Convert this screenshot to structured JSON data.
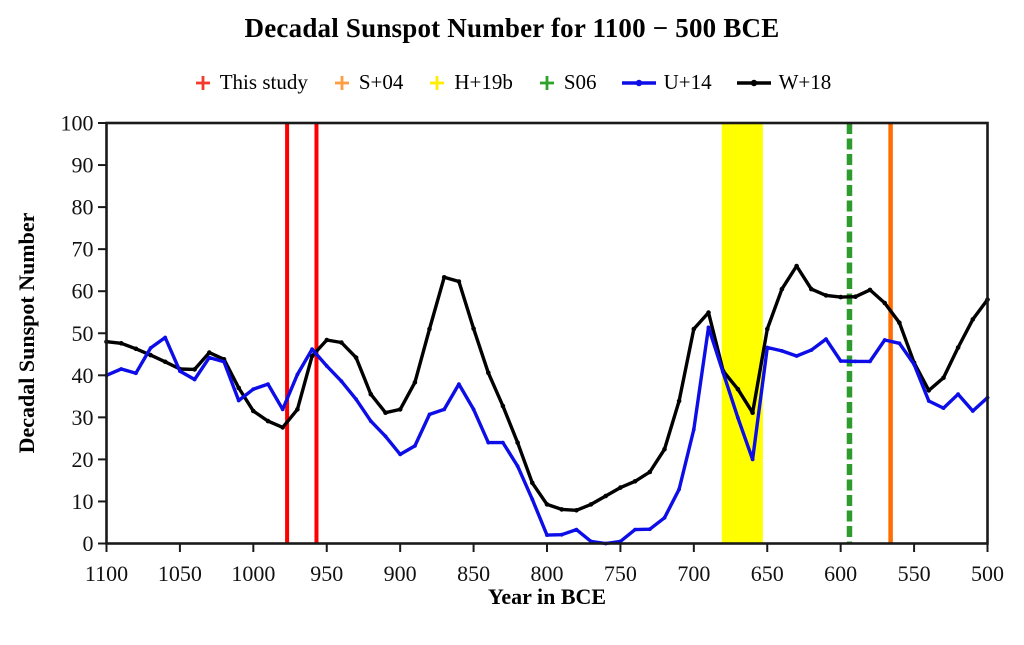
{
  "title": "Decadal Sunspot Number for 1100 − 500 BCE",
  "axes": {
    "xlabel": "Year in BCE",
    "ylabel": "Decadal Sunspot Number"
  },
  "legend": {
    "items": [
      {
        "label": "This study",
        "color": "#F23B2E",
        "symbol": "plus"
      },
      {
        "label": "S+04",
        "color": "#FF9E40",
        "symbol": "plus"
      },
      {
        "label": "H+19b",
        "color": "#FFEE00",
        "symbol": "plus"
      },
      {
        "label": "S06",
        "color": "#2DA32D",
        "symbol": "plus"
      },
      {
        "label": "U+14",
        "color": "#0D0DE8",
        "symbol": "line"
      },
      {
        "label": "W+18",
        "color": "#000000",
        "symbol": "line"
      }
    ]
  },
  "chart_data": {
    "type": "line",
    "title": "Decadal Sunspot Number for 1100 − 500 BCE",
    "xlabel": "Year in BCE",
    "ylabel": "Decadal Sunspot Number",
    "x_axis": {
      "min": 500,
      "max": 1100,
      "reversed": true,
      "ticks": [
        1100,
        1050,
        1000,
        950,
        900,
        850,
        800,
        750,
        700,
        650,
        600,
        550,
        500
      ]
    },
    "y_axis": {
      "min": 0,
      "max": 100,
      "ticks": [
        0,
        10,
        20,
        30,
        40,
        50,
        60,
        70,
        80,
        90,
        100
      ]
    },
    "x_years_bce": [
      1100,
      1090,
      1080,
      1070,
      1060,
      1050,
      1040,
      1030,
      1020,
      1010,
      1000,
      990,
      980,
      970,
      960,
      950,
      940,
      930,
      920,
      910,
      900,
      890,
      880,
      870,
      860,
      850,
      840,
      830,
      820,
      810,
      800,
      790,
      780,
      770,
      760,
      750,
      740,
      730,
      720,
      710,
      700,
      690,
      680,
      670,
      660,
      650,
      640,
      630,
      620,
      610,
      600,
      590,
      580,
      570,
      560,
      550,
      540,
      530,
      520,
      510,
      500
    ],
    "series": [
      {
        "name": "W+18",
        "color": "#000000",
        "values": [
          48,
          47.6,
          46.3,
          44.8,
          43.2,
          41.5,
          41.4,
          45.4,
          43.8,
          37,
          31.5,
          29.1,
          27.6,
          31.9,
          44.6,
          48.4,
          47.8,
          44.2,
          35.5,
          31.1,
          31.9,
          38.3,
          51,
          63.3,
          62.3,
          51.1,
          40.6,
          32.7,
          24,
          14.4,
          9.3,
          8.1,
          7.9,
          9.3,
          11.3,
          13.3,
          14.8,
          17,
          22.4,
          33.9,
          51,
          54.9,
          41,
          36.7,
          31.1,
          51,
          60.5,
          66,
          60.5,
          59,
          58.6,
          58.7,
          60.3,
          57.2,
          52.5,
          43,
          36.4,
          39.4,
          46.6,
          53.3,
          58
        ]
      },
      {
        "name": "U+14",
        "color": "#0D0DE8",
        "values": [
          40,
          41.5,
          40.5,
          46.5,
          49,
          41,
          39,
          44.2,
          43.2,
          34,
          36.7,
          37.9,
          31.9,
          40.2,
          46.2,
          42.2,
          38.6,
          34.3,
          29.1,
          25.5,
          21.2,
          23.2,
          30.7,
          31.9,
          37.9,
          31.9,
          24,
          24,
          18.4,
          10.5,
          2,
          2.1,
          3.3,
          0.5,
          0,
          0.5,
          3.3,
          3.4,
          6.1,
          12.9,
          27.1,
          51.4,
          40.6,
          29.9,
          20,
          46.6,
          45.8,
          44.6,
          46,
          48.6,
          43.4,
          43.3,
          43.3,
          48.4,
          47.6,
          42.6,
          33.9,
          32.2,
          35.5,
          31.5,
          34.7
        ]
      }
    ],
    "events": [
      {
        "label": "This study",
        "type": "vline",
        "color": "#FF0000",
        "years": [
          977,
          957
        ],
        "width": 4
      },
      {
        "label": "H+19b",
        "type": "band",
        "color": "#FFFF00",
        "from": 681,
        "to": 653
      },
      {
        "label": "S06",
        "type": "vline-dashed",
        "color": "#2D9B2D",
        "years": [
          594
        ],
        "width": 5.5
      },
      {
        "label": "S+04",
        "type": "vline",
        "color": "#FF6D00",
        "years": [
          566
        ],
        "width": 4.5
      }
    ],
    "legend_position": "top",
    "grid": false
  }
}
